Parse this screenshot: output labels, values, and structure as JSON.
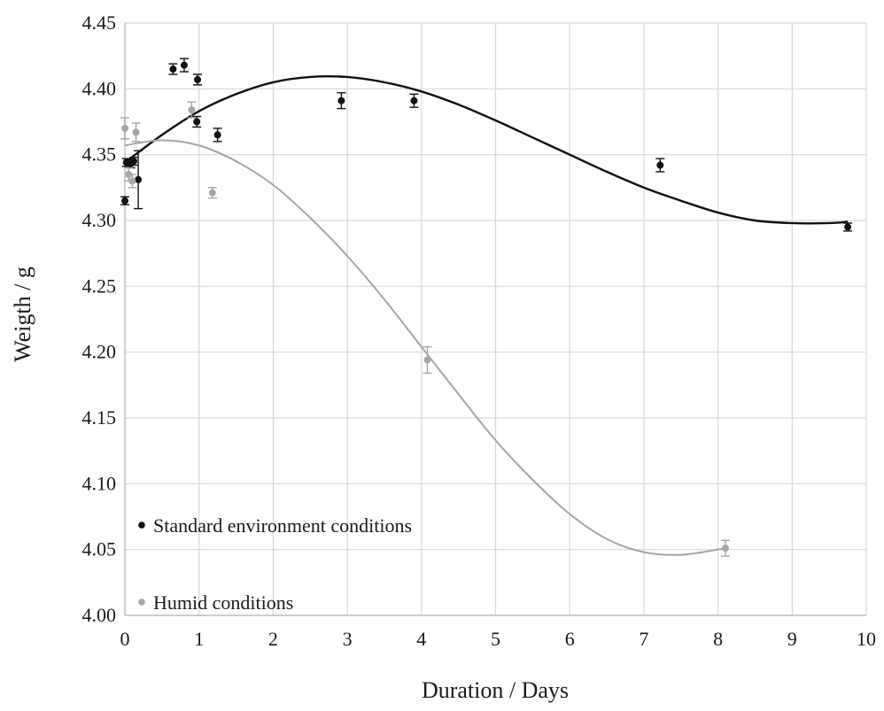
{
  "chart_data": {
    "type": "scatter",
    "title": "",
    "xlabel": "Duration / Days",
    "ylabel": "Weigth / g",
    "xlim": [
      0,
      10
    ],
    "ylim": [
      4.0,
      4.45
    ],
    "x_ticks": [
      0,
      1,
      2,
      3,
      4,
      5,
      6,
      7,
      8,
      9,
      10
    ],
    "x_tick_labels": [
      "0",
      "1",
      "2",
      "3",
      "4",
      "5",
      "6",
      "7",
      "8",
      "9",
      "10"
    ],
    "y_ticks": [
      4.0,
      4.05,
      4.1,
      4.15,
      4.2,
      4.25,
      4.3,
      4.35,
      4.4,
      4.45
    ],
    "y_tick_labels": [
      "4.00",
      "4.05",
      "4.10",
      "4.15",
      "4.20",
      "4.25",
      "4.30",
      "4.35",
      "4.40",
      "4.45"
    ],
    "grid": true,
    "legend_position": "bottom-left",
    "series": [
      {
        "name": "Standard environment conditions",
        "color": "#111111",
        "points": [
          {
            "x": 0.0,
            "y": 4.315,
            "err": 0.003
          },
          {
            "x": 0.02,
            "y": 4.344,
            "err": 0.003
          },
          {
            "x": 0.08,
            "y": 4.343,
            "err": 0.003
          },
          {
            "x": 0.12,
            "y": 4.345,
            "err": 0.003
          },
          {
            "x": 0.18,
            "y": 4.331,
            "err": 0.022
          },
          {
            "x": 0.65,
            "y": 4.415,
            "err": 0.004
          },
          {
            "x": 0.8,
            "y": 4.418,
            "err": 0.005
          },
          {
            "x": 0.98,
            "y": 4.407,
            "err": 0.004
          },
          {
            "x": 0.97,
            "y": 4.375,
            "err": 0.004
          },
          {
            "x": 1.25,
            "y": 4.365,
            "err": 0.005
          },
          {
            "x": 2.92,
            "y": 4.391,
            "err": 0.006
          },
          {
            "x": 3.9,
            "y": 4.391,
            "err": 0.005
          },
          {
            "x": 7.22,
            "y": 4.342,
            "err": 0.005
          },
          {
            "x": 9.75,
            "y": 4.295,
            "err": 0.003
          }
        ],
        "trend": [
          [
            0,
            4.344
          ],
          [
            0.5,
            4.365
          ],
          [
            1,
            4.383
          ],
          [
            1.5,
            4.396
          ],
          [
            2,
            4.405
          ],
          [
            2.5,
            4.409
          ],
          [
            3,
            4.409
          ],
          [
            3.5,
            4.405
          ],
          [
            4,
            4.398
          ],
          [
            4.5,
            4.388
          ],
          [
            5,
            4.376
          ],
          [
            5.5,
            4.363
          ],
          [
            6,
            4.35
          ],
          [
            6.5,
            4.337
          ],
          [
            7,
            4.325
          ],
          [
            7.5,
            4.315
          ],
          [
            8,
            4.306
          ],
          [
            8.5,
            4.3
          ],
          [
            9,
            4.298
          ],
          [
            9.5,
            4.298
          ],
          [
            9.75,
            4.299
          ]
        ]
      },
      {
        "name": "Humid conditions",
        "color": "#a6a6a6",
        "points": [
          {
            "x": 0.0,
            "y": 4.37,
            "err": 0.008
          },
          {
            "x": 0.05,
            "y": 4.335,
            "err": 0.005
          },
          {
            "x": 0.1,
            "y": 4.33,
            "err": 0.005
          },
          {
            "x": 0.15,
            "y": 4.367,
            "err": 0.007
          },
          {
            "x": 0.9,
            "y": 4.384,
            "err": 0.006
          },
          {
            "x": 1.18,
            "y": 4.321,
            "err": 0.004
          },
          {
            "x": 4.08,
            "y": 4.194,
            "err": 0.01
          },
          {
            "x": 8.1,
            "y": 4.051,
            "err": 0.006
          }
        ],
        "trend": [
          [
            0,
            4.357
          ],
          [
            0.5,
            4.361
          ],
          [
            1,
            4.357
          ],
          [
            1.5,
            4.345
          ],
          [
            2,
            4.327
          ],
          [
            2.5,
            4.302
          ],
          [
            3,
            4.273
          ],
          [
            3.5,
            4.24
          ],
          [
            4,
            4.204
          ],
          [
            4.5,
            4.168
          ],
          [
            5,
            4.133
          ],
          [
            5.5,
            4.103
          ],
          [
            6,
            4.077
          ],
          [
            6.5,
            4.058
          ],
          [
            7,
            4.048
          ],
          [
            7.5,
            4.046
          ],
          [
            8,
            4.05
          ],
          [
            8.1,
            4.051
          ]
        ]
      }
    ]
  }
}
